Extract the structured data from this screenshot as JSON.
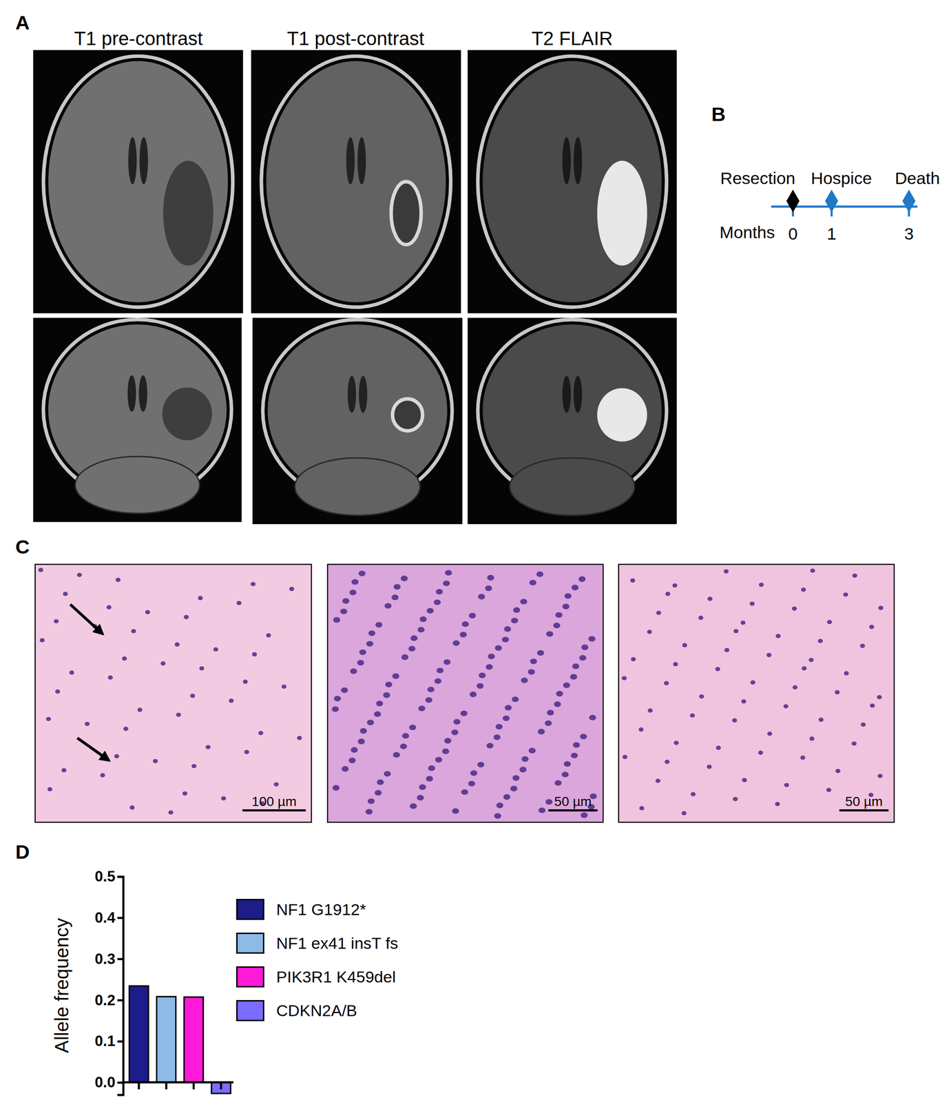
{
  "figure": {
    "panel_labels": [
      "A",
      "B",
      "C",
      "D"
    ],
    "panel_a": {
      "column_titles": [
        "T1 pre-contrast",
        "T1 post-contrast",
        "T2 FLAIR"
      ]
    },
    "panel_b": {
      "axis_label": "Months",
      "events": [
        {
          "label": "Resection",
          "month": 0,
          "color": "#000000"
        },
        {
          "label": "Hospice",
          "month": 1,
          "color": "#1f78c8"
        },
        {
          "label": "Death",
          "month": 3,
          "color": "#1f78c8"
        }
      ]
    },
    "panel_c": {
      "scale_bars": [
        "100 µm",
        "50 µm",
        "50 µm"
      ]
    }
  },
  "chart_data": {
    "type": "bar",
    "categories": [
      "NF1 G1912*",
      "NF1 ex41 insT fs",
      "PIK3R1 K459del",
      "CDKN2A/B"
    ],
    "values": [
      0.234,
      0.208,
      0.207,
      -0.027
    ],
    "colors": [
      "#1c1c8a",
      "#8dbbe8",
      "#ff1ad9",
      "#7a6cff"
    ],
    "ylabel": "Allele frequency",
    "ylim": [
      -0.03,
      0.5
    ],
    "yticks": [
      {
        "value": 0,
        "label": "0.0"
      },
      0.1,
      0.2,
      0.3,
      0.4,
      0.5
    ],
    "legend": "right",
    "tick_labels": "y"
  }
}
